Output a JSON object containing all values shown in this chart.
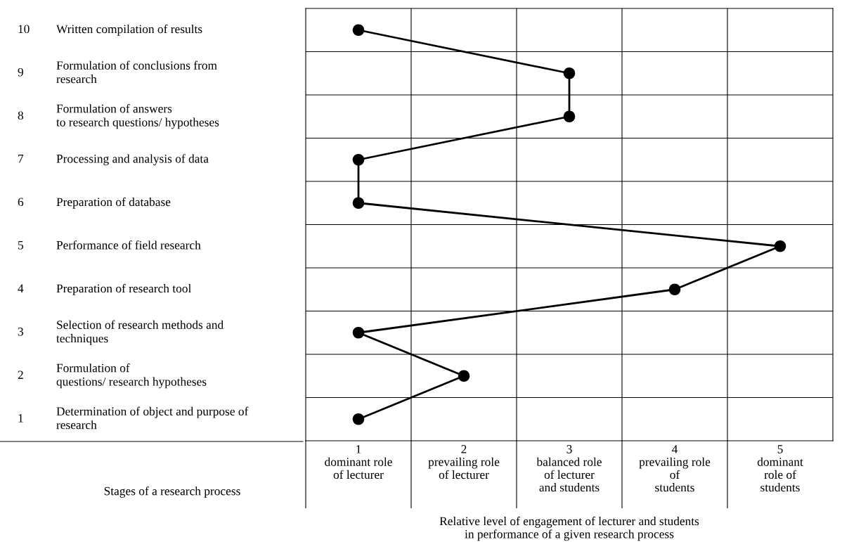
{
  "chart_data": {
    "type": "line",
    "orientation": "horizontal",
    "categories": [
      "10 Written compilation of results",
      "9 Formulation of conclusions from\nresearch",
      "8 Formulation of answers\nto research questions/ hypotheses",
      "7 Processing and analysis of data",
      "6 Preparation of database",
      "5 Performance of field research",
      "4 Preparation of research tool",
      "3 Selection of research methods and\ntechniques",
      "2 Formulation of\nquestions/ research hypotheses",
      "1 Determination of object and purpose of\nresearch"
    ],
    "series": [
      {
        "color": "#000000",
        "values": [
          1,
          3,
          3,
          1,
          1,
          5,
          4,
          1,
          2,
          1
        ]
      }
    ],
    "xlim": [
      0.5,
      5.5
    ],
    "xticks": [
      {
        "value": 1,
        "label": "1\ndominant role\nof lecturer"
      },
      {
        "value": 2,
        "label": "2\nprevailing role\nof lecturer"
      },
      {
        "value": 3,
        "label": "3\nbalanced role\nof lecturer\nand students"
      },
      {
        "value": 4,
        "label": "4\nprevailing role\nof\nstudents"
      },
      {
        "value": 5,
        "label": "5\ndominant\nrole of\nstudents"
      }
    ],
    "xlabel": "Relative level of engagement of lecturer and students\nin performance of a given research process",
    "annotations": [
      "Stages of a research process"
    ],
    "marker": "circle",
    "line_style": "solid",
    "grid": true
  }
}
